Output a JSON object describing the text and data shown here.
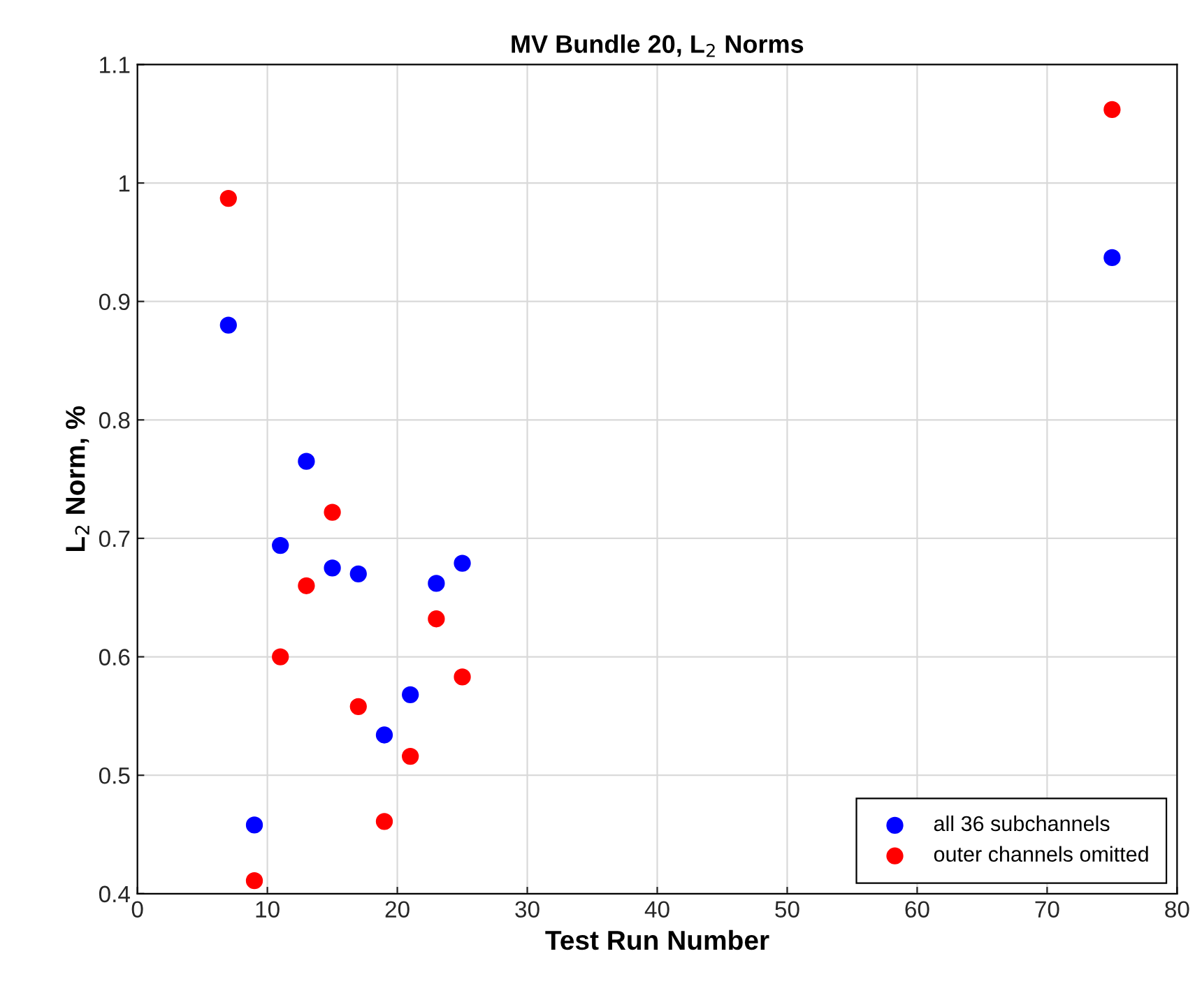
{
  "chart_data": {
    "type": "scatter",
    "title": "MV Bundle 20, L$_{2}$ Norms",
    "xlabel": "Test Run Number",
    "ylabel": "L$_{2}$ Norm, %",
    "x": [
      7,
      9,
      11,
      13,
      15,
      17,
      19,
      21,
      23,
      25,
      75
    ],
    "series": [
      {
        "name": "all 36 subchannels",
        "color": "#0000ff",
        "values": [
          0.88,
          0.458,
          0.694,
          0.765,
          0.675,
          0.67,
          0.534,
          0.568,
          0.662,
          0.679,
          0.937
        ]
      },
      {
        "name": "outer channels omitted",
        "color": "#ff0000",
        "values": [
          0.987,
          0.411,
          0.6,
          0.66,
          0.722,
          0.558,
          0.461,
          0.516,
          0.632,
          0.583,
          1.062
        ]
      }
    ],
    "xlim": [
      0,
      80
    ],
    "xticks": [
      0,
      10,
      20,
      30,
      40,
      50,
      60,
      70,
      80
    ],
    "ylim": [
      0.4,
      1.1
    ],
    "yticks": [
      0.4,
      0.5,
      0.6,
      0.7,
      0.8,
      0.9,
      1,
      1.1
    ],
    "grid": true,
    "legend": "bottom right",
    "marker": "circle"
  }
}
